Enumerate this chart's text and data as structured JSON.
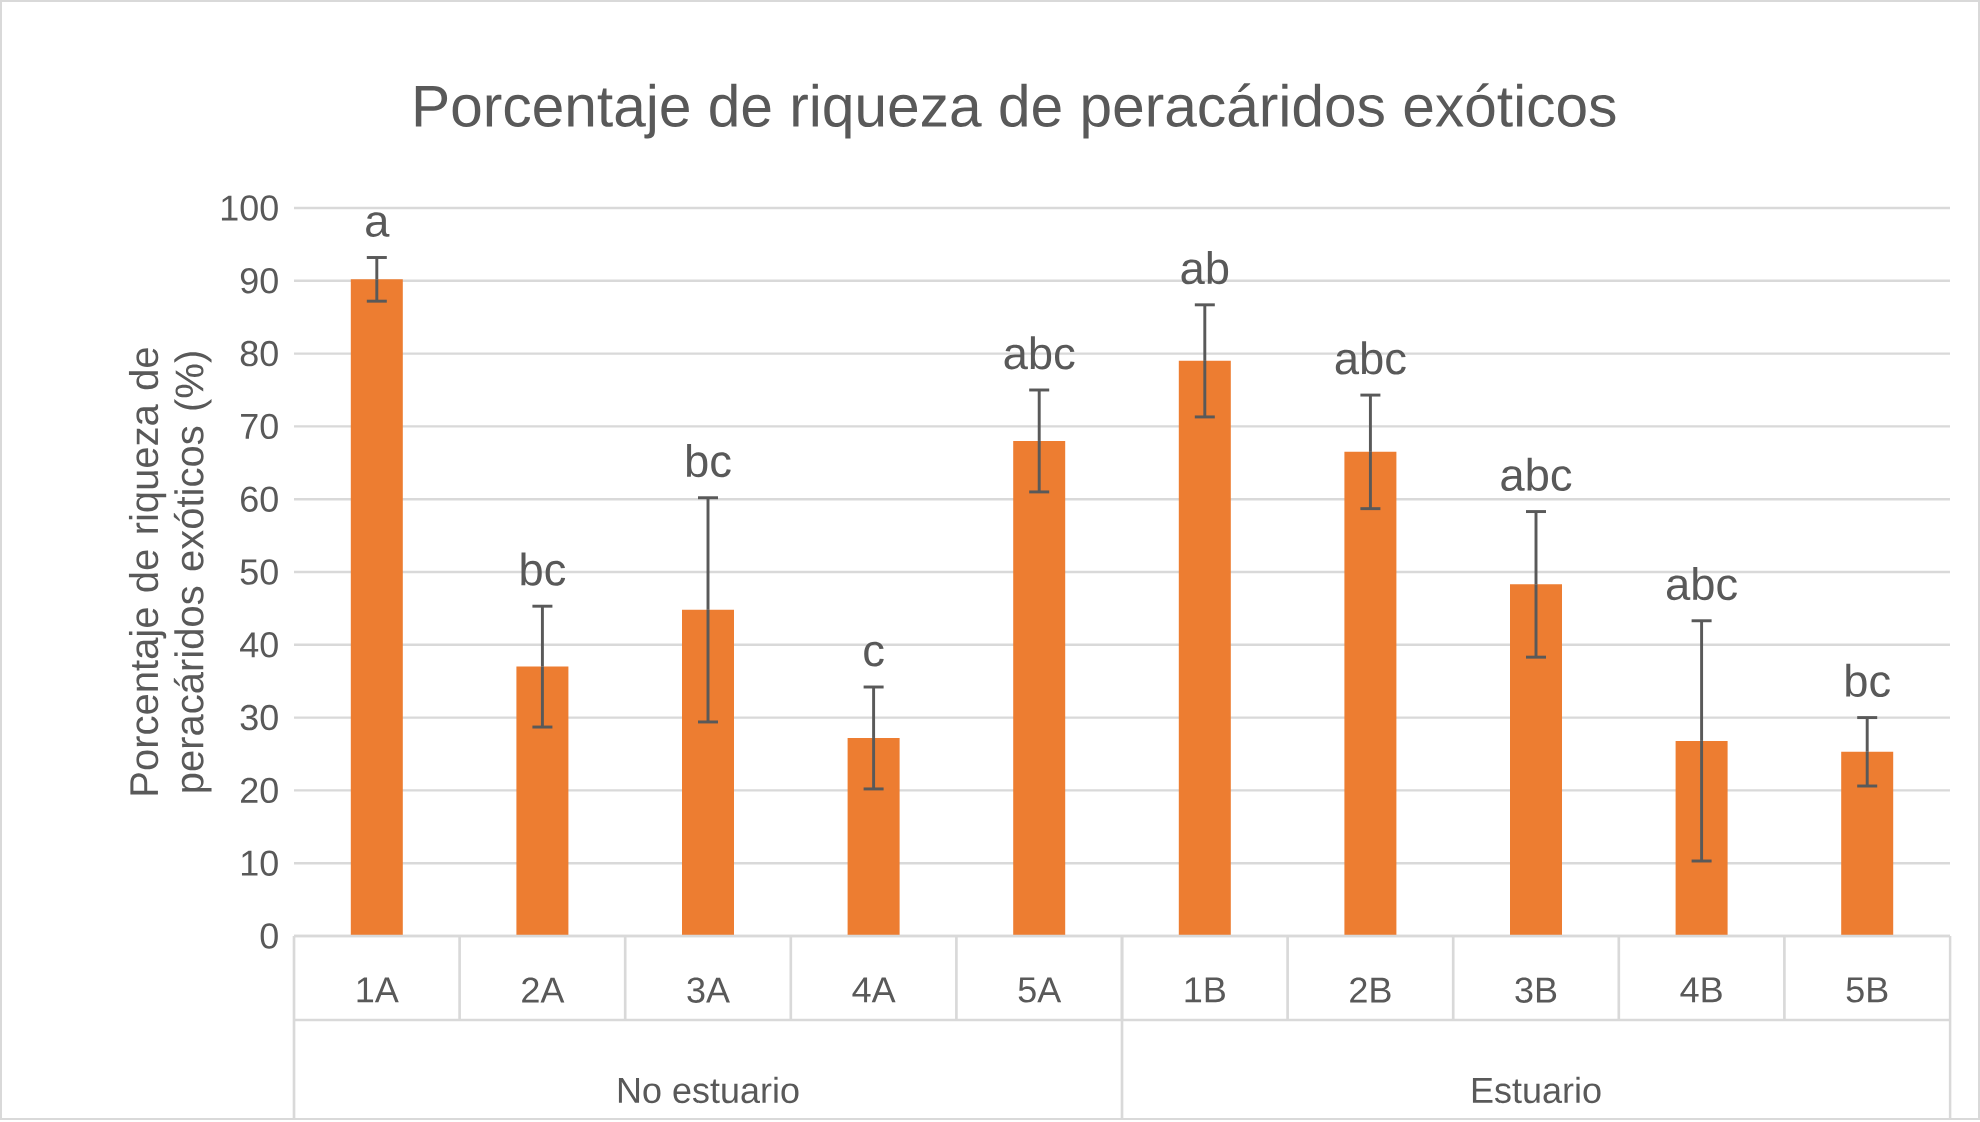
{
  "chart_data": {
    "type": "bar",
    "title": "Porcentaje de riqueza de peracáridos exóticos",
    "ylabel": "Porcentaje de riqueza de peracáridos exóticos  (%)",
    "categories": [
      "1A",
      "2A",
      "3A",
      "4A",
      "5A",
      "1B",
      "2B",
      "3B",
      "4B",
      "5B"
    ],
    "values": [
      90.2,
      37,
      44.8,
      27.2,
      68,
      79,
      66.5,
      48.3,
      26.8,
      25.3
    ],
    "errors": [
      3,
      8.3,
      15.4,
      7,
      7,
      7.7,
      7.8,
      10,
      16.5,
      4.7
    ],
    "color": "#ed7d31",
    "ylim": [
      0,
      100
    ],
    "yticks": [
      0,
      10,
      20,
      30,
      40,
      50,
      60,
      70,
      80,
      90,
      100
    ],
    "grid": "y",
    "annotations": [
      "a",
      "bc",
      "bc",
      "c",
      "abc",
      "ab",
      "abc",
      "abc",
      "abc",
      "bc",
      "No estuario",
      "Estuario"
    ]
  }
}
